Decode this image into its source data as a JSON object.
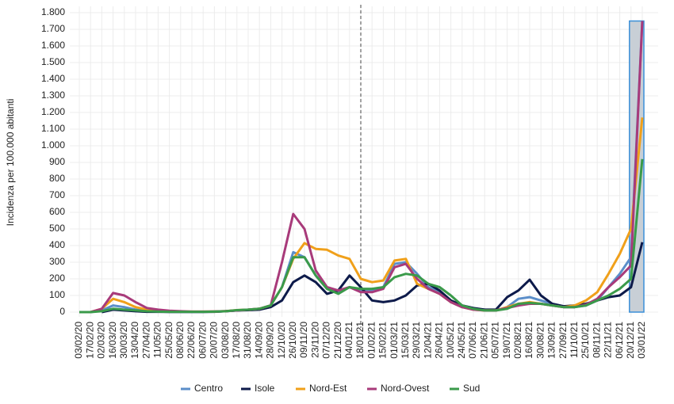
{
  "chart_data": {
    "type": "line",
    "y_label": "Incidenza per 100.000 abitanti",
    "categories": [
      "03/02/20",
      "17/02/20",
      "02/03/20",
      "16/03/20",
      "30/03/20",
      "13/04/20",
      "27/04/20",
      "11/05/20",
      "25/05/20",
      "08/06/20",
      "22/06/20",
      "06/07/20",
      "20/07/20",
      "03/08/20",
      "17/08/20",
      "31/08/20",
      "14/09/20",
      "28/09/20",
      "12/10/20",
      "26/10/20",
      "09/11/20",
      "23/11/20",
      "07/12/20",
      "21/12/20",
      "04/01/21",
      "18/01/21",
      "01/02/21",
      "15/02/21",
      "01/03/21",
      "15/03/21",
      "29/03/21",
      "12/04/21",
      "26/04/21",
      "10/05/21",
      "24/05/21",
      "07/06/21",
      "21/06/21",
      "05/07/21",
      "19/07/21",
      "02/08/21",
      "16/08/21",
      "30/08/21",
      "13/09/21",
      "27/09/21",
      "11/10/21",
      "25/10/21",
      "08/11/21",
      "22/11/21",
      "06/12/21",
      "20/12/21",
      "03/01/22"
    ],
    "series": [
      {
        "name": "Centro",
        "color": "#5b8ec9",
        "values": [
          0,
          0,
          10,
          40,
          30,
          15,
          5,
          3,
          2,
          2,
          2,
          2,
          3,
          5,
          10,
          15,
          20,
          40,
          150,
          360,
          330,
          220,
          140,
          120,
          150,
          130,
          130,
          150,
          290,
          300,
          230,
          150,
          120,
          60,
          30,
          20,
          15,
          10,
          30,
          80,
          90,
          70,
          50,
          35,
          30,
          40,
          70,
          150,
          230,
          330,
          1750
        ]
      },
      {
        "name": "Isole",
        "color": "#0d1a4a",
        "values": [
          null,
          null,
          0,
          15,
          10,
          5,
          2,
          2,
          1,
          1,
          1,
          1,
          2,
          5,
          10,
          12,
          15,
          30,
          70,
          180,
          220,
          180,
          110,
          130,
          220,
          150,
          70,
          60,
          70,
          100,
          160,
          170,
          130,
          70,
          40,
          25,
          15,
          15,
          90,
          130,
          195,
          100,
          50,
          35,
          40,
          50,
          70,
          90,
          100,
          150,
          420
        ]
      },
      {
        "name": "Nord-Est",
        "color": "#f0a01a",
        "values": [
          0,
          0,
          20,
          80,
          60,
          30,
          15,
          8,
          5,
          4,
          3,
          3,
          4,
          6,
          12,
          15,
          20,
          40,
          150,
          320,
          415,
          380,
          375,
          340,
          320,
          200,
          180,
          190,
          310,
          320,
          170,
          140,
          110,
          60,
          30,
          15,
          10,
          10,
          30,
          50,
          60,
          50,
          40,
          30,
          40,
          70,
          120,
          230,
          350,
          500,
          1170
        ]
      },
      {
        "name": "Nord-Ovest",
        "color": "#a83a7a",
        "values": [
          0,
          0,
          20,
          115,
          100,
          60,
          25,
          15,
          8,
          5,
          3,
          3,
          4,
          6,
          10,
          15,
          20,
          40,
          300,
          590,
          500,
          250,
          150,
          130,
          150,
          120,
          120,
          140,
          270,
          290,
          200,
          140,
          110,
          60,
          30,
          15,
          10,
          10,
          25,
          40,
          50,
          50,
          40,
          30,
          30,
          45,
          80,
          150,
          210,
          280,
          1750
        ]
      },
      {
        "name": "Sud",
        "color": "#3a9a4a",
        "values": [
          0,
          0,
          5,
          20,
          15,
          10,
          5,
          3,
          2,
          2,
          2,
          2,
          3,
          5,
          12,
          15,
          20,
          40,
          150,
          330,
          330,
          220,
          140,
          110,
          150,
          140,
          140,
          150,
          210,
          230,
          220,
          170,
          150,
          100,
          40,
          20,
          10,
          10,
          20,
          50,
          55,
          50,
          40,
          30,
          30,
          40,
          70,
          100,
          140,
          200,
          920
        ]
      }
    ],
    "ylim": [
      0,
      1800
    ],
    "yticks": [
      0,
      100,
      200,
      300,
      400,
      500,
      600,
      700,
      800,
      900,
      {
        "value": 1000,
        "label": "1.000"
      },
      {
        "value": 1100,
        "label": "1.100"
      },
      {
        "value": 1200,
        "label": "1.200"
      },
      {
        "value": 1300,
        "label": "1.300"
      },
      {
        "value": 1400,
        "label": "1.400"
      },
      {
        "value": 1500,
        "label": "1.500"
      },
      {
        "value": 1600,
        "label": "1.600"
      },
      {
        "value": 1700,
        "label": "1.700"
      },
      {
        "value": 1800,
        "label": "1.800"
      }
    ],
    "grid": true,
    "legend": "bottom",
    "vline_at": "18/01/21",
    "highlight_at": "20/12/21"
  }
}
